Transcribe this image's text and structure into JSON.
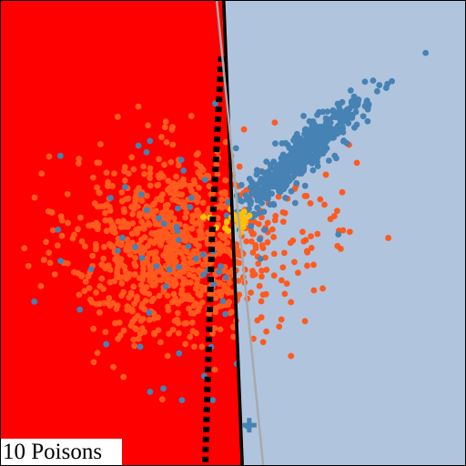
{
  "panel": {
    "label": "10 Poisons"
  },
  "chart_data": {
    "type": "scatter",
    "title": "",
    "xlabel": "",
    "ylabel": "",
    "xlim": [
      0,
      1
    ],
    "ylim": [
      0,
      1
    ],
    "grid": false,
    "legend": "none",
    "regions": [
      {
        "name": "",
        "color": "#ff0000",
        "side": "left"
      },
      {
        "name": "",
        "color": "#b0c4de",
        "side": "right"
      }
    ],
    "boundaries": [
      {
        "name": "",
        "style": "solid",
        "color": "#000000",
        "points": [
          [
            0.48,
            1.0
          ],
          [
            0.52,
            0.0
          ]
        ]
      },
      {
        "name": "",
        "style": "dotted",
        "color": "#000000",
        "points": [
          [
            0.475,
            0.88
          ],
          [
            0.455,
            0.5
          ],
          [
            0.44,
            0.0
          ]
        ]
      },
      {
        "name": "",
        "style": "solid",
        "color": "#a9a9a9",
        "points": [
          [
            0.465,
            1.0
          ],
          [
            0.565,
            0.0
          ]
        ]
      }
    ],
    "series": [
      {
        "name": "",
        "color": "#4682b4",
        "clusters": [
          {
            "n": 520,
            "cx": 0.65,
            "cy": 0.67,
            "spread_along": 0.085,
            "spread_across": 0.018,
            "angle_deg": 42
          },
          {
            "n": 60,
            "cx": 0.36,
            "cy": 0.45,
            "spread_along": 0.12,
            "spread_across": 0.12,
            "angle_deg": 0
          }
        ],
        "points": [
          [
            0.915,
            0.888
          ],
          [
            0.531,
            0.084
          ],
          [
            0.39,
            0.14
          ],
          [
            0.35,
            0.165
          ],
          [
            0.17,
            0.335
          ],
          [
            0.3,
            0.255
          ]
        ]
      },
      {
        "name": "",
        "color": "#ff5a1e",
        "clusters": [
          {
            "n": 900,
            "cx": 0.37,
            "cy": 0.47,
            "spread_along": 0.11,
            "spread_across": 0.1,
            "angle_deg": 0
          },
          {
            "n": 70,
            "cx": 0.6,
            "cy": 0.5,
            "spread_along": 0.09,
            "spread_across": 0.08,
            "angle_deg": 0
          }
        ],
        "points": [
          [
            0.59,
            0.738
          ],
          [
            0.565,
            0.265
          ],
          [
            0.625,
            0.235
          ],
          [
            0.655,
            0.31
          ],
          [
            0.75,
            0.69
          ],
          [
            0.71,
            0.53
          ]
        ]
      },
      {
        "name": "",
        "color": "#ffc000",
        "clusters": [
          {
            "n": 26,
            "cx": 0.51,
            "cy": 0.525,
            "spread_along": 0.028,
            "spread_across": 0.014,
            "angle_deg": 0
          }
        ],
        "points": []
      }
    ],
    "markers": [
      {
        "name": "",
        "symbol": "plus",
        "color": "#4682b4",
        "x": 0.535,
        "y": 0.086
      }
    ]
  }
}
